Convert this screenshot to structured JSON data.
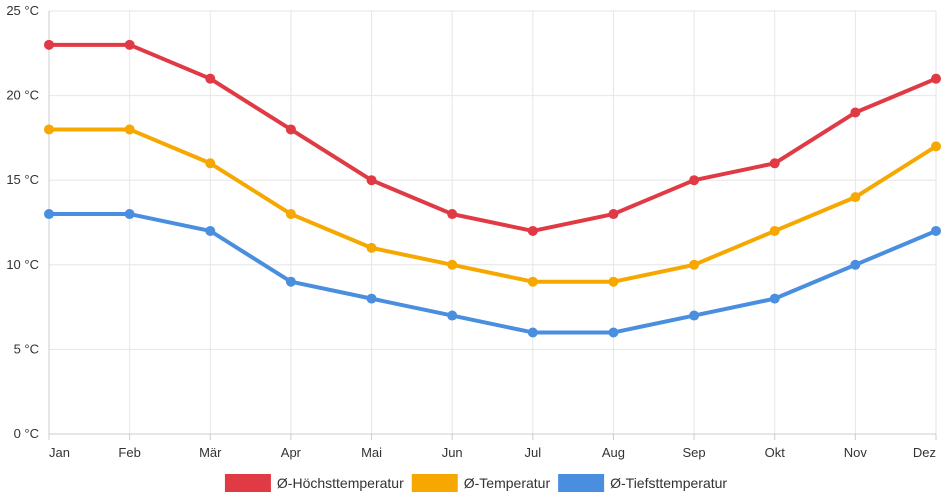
{
  "chart_data": {
    "type": "line",
    "categories": [
      "Jan",
      "Feb",
      "Mär",
      "Apr",
      "Mai",
      "Jun",
      "Jul",
      "Aug",
      "Sep",
      "Okt",
      "Nov",
      "Dez"
    ],
    "series": [
      {
        "name": "Ø-Höchsttemperatur",
        "color": "#e03a45",
        "values": [
          23,
          23,
          21,
          18,
          15,
          13,
          12,
          13,
          15,
          16,
          19,
          21
        ]
      },
      {
        "name": "Ø-Temperatur",
        "color": "#f6a800",
        "values": [
          18,
          18,
          16,
          13,
          11,
          10,
          9,
          9,
          10,
          12,
          14,
          17
        ]
      },
      {
        "name": "Ø-Tiefsttemperatur",
        "color": "#4a8fdf",
        "values": [
          13,
          13,
          12,
          9,
          8,
          7,
          6,
          6,
          7,
          8,
          10,
          12
        ]
      }
    ],
    "y_ticks": [
      0,
      5,
      10,
      15,
      20,
      25
    ],
    "y_unit": " °C",
    "ylim": [
      0,
      25
    ],
    "grid": true,
    "legend": "bottom-center",
    "title": "",
    "xlabel": "",
    "ylabel": ""
  }
}
